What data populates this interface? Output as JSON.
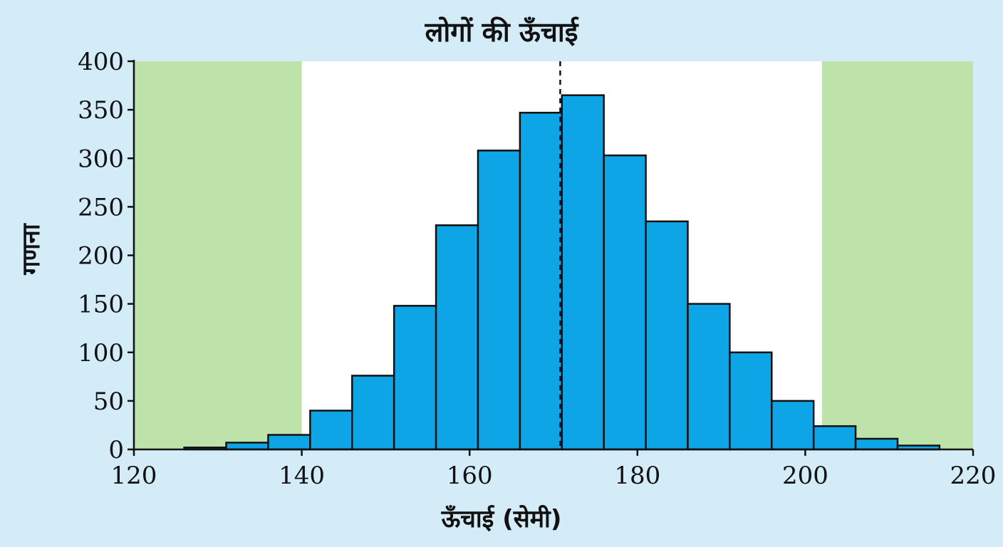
{
  "chart_data": {
    "type": "bar",
    "title": "लोगों की ऊँचाई",
    "xlabel": "ऊँचाई (सेमी)",
    "ylabel": "गणना",
    "xlim": [
      120,
      220
    ],
    "ylim": [
      0,
      400
    ],
    "xticks": [
      120,
      140,
      160,
      180,
      200,
      220
    ],
    "yticks": [
      0,
      50,
      100,
      150,
      200,
      250,
      300,
      350,
      400
    ],
    "bins": [
      {
        "start": 126,
        "end": 131,
        "count": 2
      },
      {
        "start": 131,
        "end": 136,
        "count": 7
      },
      {
        "start": 136,
        "end": 141,
        "count": 15
      },
      {
        "start": 141,
        "end": 146,
        "count": 40
      },
      {
        "start": 146,
        "end": 151,
        "count": 76
      },
      {
        "start": 151,
        "end": 156,
        "count": 148
      },
      {
        "start": 156,
        "end": 161,
        "count": 231
      },
      {
        "start": 161,
        "end": 166,
        "count": 308
      },
      {
        "start": 166,
        "end": 171,
        "count": 347
      },
      {
        "start": 171,
        "end": 176,
        "count": 365
      },
      {
        "start": 176,
        "end": 181,
        "count": 303
      },
      {
        "start": 181,
        "end": 186,
        "count": 235
      },
      {
        "start": 186,
        "end": 191,
        "count": 150
      },
      {
        "start": 191,
        "end": 196,
        "count": 100
      },
      {
        "start": 196,
        "end": 201,
        "count": 50
      },
      {
        "start": 201,
        "end": 206,
        "count": 24
      },
      {
        "start": 206,
        "end": 211,
        "count": 11
      },
      {
        "start": 211,
        "end": 216,
        "count": 4
      }
    ],
    "mean_line": 170.8,
    "shaded_regions": [
      {
        "from": 120,
        "to": 140
      },
      {
        "from": 202,
        "to": 220
      }
    ],
    "grid": false,
    "colors": {
      "background": "#d3ecf7",
      "plot_area": "#ffffff",
      "shaded": "#bde3aa",
      "bar_fill": "#0ea5e6",
      "bar_stroke": "#111111",
      "axis": "#111111"
    }
  }
}
